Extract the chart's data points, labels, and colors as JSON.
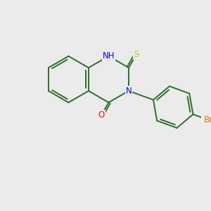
{
  "background_color": "#ebebeb",
  "bond_color": "#2d6e2d",
  "atom_colors": {
    "N": "#0000ff",
    "S": "#cccc00",
    "O": "#ff0000",
    "Br": "#cc7722"
  },
  "font_size": 8.5,
  "bond_width": 1.4,
  "figsize": [
    3.0,
    3.0
  ],
  "dpi": 100
}
